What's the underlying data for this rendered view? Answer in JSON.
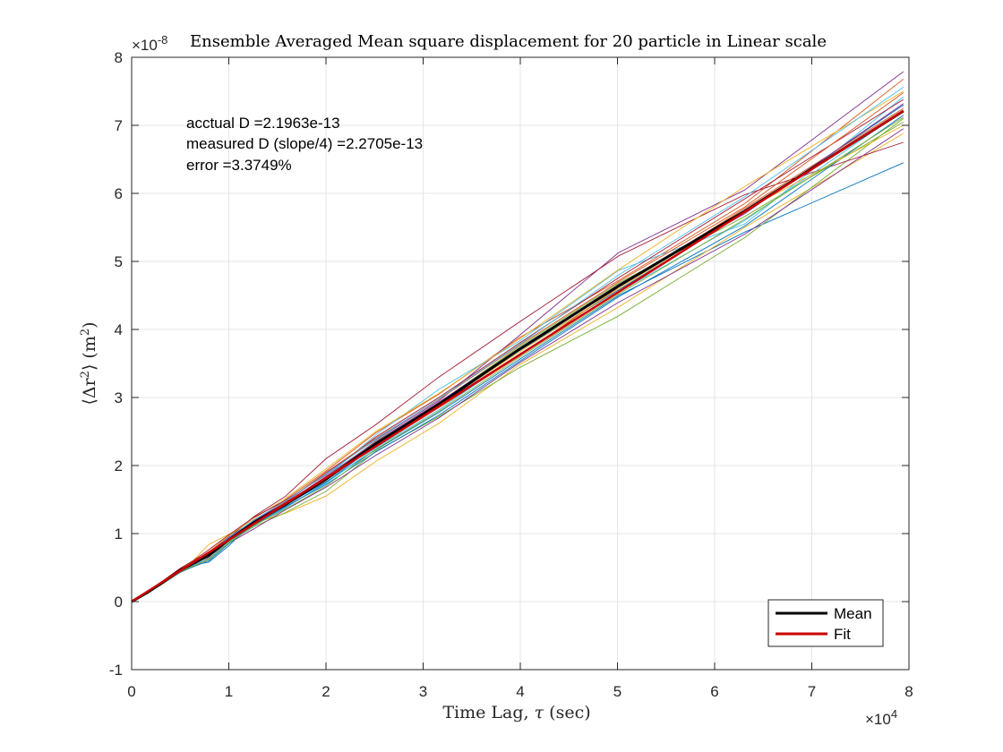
{
  "chart_data": {
    "type": "line",
    "title": "Ensemble Averaged Mean square displacement for 20 particle in Linear scale",
    "xlabel_text": "Time Lag,",
    "xlabel_symbol": "τ",
    "xlabel_unit": "(sec)",
    "ylabel_left": "⟨Δr",
    "ylabel_sup": "2",
    "ylabel_mid": "⟩ (m",
    "ylabel_sup2": "2",
    "ylabel_right": ")",
    "x_exponent_base": "×10",
    "x_exponent_power": "4",
    "y_exponent_base": "×10",
    "y_exponent_power": "-8",
    "xlim": [
      0,
      8
    ],
    "ylim": [
      -1,
      8
    ],
    "x_scale_note": "x in units of 1e4 s, y in units of 1e-8 m^2",
    "x_ticks": [
      0,
      1,
      2,
      3,
      4,
      5,
      6,
      7,
      8
    ],
    "y_ticks": [
      -1,
      0,
      1,
      2,
      3,
      4,
      5,
      6,
      7,
      8
    ],
    "grid": true,
    "legend_position": "bottom-right",
    "annotations": [
      "acctual D =2.1963e-13",
      "measured D (slope/4) =2.2705e-13",
      "error =3.3749%"
    ],
    "x": [
      0,
      0.158,
      0.316,
      0.5,
      0.631,
      0.794,
      1.0,
      1.259,
      1.585,
      2.0,
      2.512,
      3.162,
      3.981,
      5.012,
      6.31,
      7.943
    ],
    "series_colors": [
      "#0072BD",
      "#D95319",
      "#EDB120",
      "#7E2F8E",
      "#77AC30",
      "#4DBEEE",
      "#A2142F"
    ],
    "series": [
      {
        "values": [
          0,
          0.12,
          0.27,
          0.45,
          0.54,
          0.58,
          0.82,
          1.19,
          1.42,
          1.76,
          2.23,
          2.78,
          3.55,
          4.5,
          5.43,
          6.45
        ]
      },
      {
        "values": [
          0,
          0.13,
          0.29,
          0.47,
          0.58,
          0.69,
          0.95,
          1.17,
          1.5,
          1.92,
          2.48,
          3.05,
          3.87,
          4.72,
          5.85,
          7.68
        ]
      },
      {
        "values": [
          0,
          0.14,
          0.28,
          0.46,
          0.6,
          0.84,
          0.99,
          1.15,
          1.3,
          1.55,
          2.06,
          2.62,
          3.47,
          4.33,
          5.5,
          6.88
        ]
      },
      {
        "values": [
          0,
          0.13,
          0.3,
          0.48,
          0.56,
          0.66,
          0.93,
          1.2,
          1.46,
          1.89,
          2.38,
          2.95,
          3.9,
          5.13,
          6.05,
          7.79
        ]
      },
      {
        "values": [
          0,
          0.12,
          0.26,
          0.43,
          0.52,
          0.7,
          0.88,
          1.1,
          1.31,
          1.62,
          2.21,
          2.72,
          3.43,
          4.2,
          5.35,
          7.1
        ]
      },
      {
        "values": [
          0,
          0.13,
          0.28,
          0.45,
          0.55,
          0.66,
          0.91,
          1.16,
          1.43,
          1.83,
          2.45,
          3.12,
          3.82,
          4.87,
          5.55,
          7.42
        ]
      },
      {
        "values": [
          0,
          0.14,
          0.29,
          0.47,
          0.57,
          0.65,
          0.94,
          1.25,
          1.55,
          2.1,
          2.6,
          3.3,
          4.1,
          5.08,
          5.98,
          6.75
        ]
      },
      {
        "values": [
          0,
          0.12,
          0.28,
          0.46,
          0.55,
          0.68,
          0.89,
          1.12,
          1.38,
          1.75,
          2.3,
          2.88,
          3.68,
          4.58,
          5.72,
          7.3
        ]
      },
      {
        "values": [
          0,
          0.13,
          0.27,
          0.44,
          0.53,
          0.63,
          0.9,
          1.18,
          1.44,
          1.8,
          2.28,
          2.85,
          3.6,
          4.62,
          5.78,
          7.25
        ]
      },
      {
        "values": [
          0,
          0.14,
          0.3,
          0.48,
          0.59,
          0.73,
          0.97,
          1.22,
          1.52,
          1.95,
          2.5,
          3.06,
          3.85,
          4.88,
          6.1,
          7.5
        ]
      },
      {
        "values": [
          0,
          0.12,
          0.27,
          0.45,
          0.54,
          0.67,
          0.86,
          1.07,
          1.35,
          1.68,
          2.15,
          2.7,
          3.5,
          4.4,
          5.4,
          6.95
        ]
      },
      {
        "values": [
          0,
          0.13,
          0.29,
          0.46,
          0.57,
          0.71,
          0.92,
          1.14,
          1.41,
          1.82,
          2.36,
          2.92,
          3.74,
          4.68,
          5.66,
          7.05
        ]
      },
      {
        "values": [
          0,
          0.13,
          0.28,
          0.44,
          0.53,
          0.64,
          0.87,
          1.11,
          1.39,
          1.74,
          2.26,
          2.82,
          3.63,
          4.55,
          5.6,
          7.22
        ]
      },
      {
        "values": [
          0,
          0.14,
          0.3,
          0.49,
          0.6,
          0.76,
          0.98,
          1.24,
          1.49,
          1.86,
          2.42,
          3.0,
          3.79,
          4.76,
          5.92,
          7.38
        ]
      },
      {
        "values": [
          0,
          0.12,
          0.26,
          0.43,
          0.51,
          0.6,
          0.85,
          1.13,
          1.4,
          1.72,
          2.2,
          2.74,
          3.52,
          4.48,
          5.52,
          7.15
        ]
      },
      {
        "values": [
          0,
          0.13,
          0.28,
          0.46,
          0.56,
          0.69,
          0.93,
          1.17,
          1.47,
          1.9,
          2.4,
          2.97,
          3.76,
          4.7,
          5.8,
          7.48
        ]
      },
      {
        "values": [
          0,
          0.12,
          0.27,
          0.45,
          0.55,
          0.66,
          0.89,
          1.15,
          1.42,
          1.78,
          2.3,
          2.9,
          3.66,
          4.6,
          5.75,
          7.0
        ]
      },
      {
        "values": [
          0,
          0.13,
          0.29,
          0.47,
          0.58,
          0.72,
          0.95,
          1.19,
          1.45,
          1.84,
          2.35,
          2.93,
          3.71,
          4.66,
          5.7,
          7.32
        ]
      },
      {
        "values": [
          0,
          0.12,
          0.26,
          0.44,
          0.52,
          0.62,
          0.86,
          1.12,
          1.36,
          1.7,
          2.24,
          2.8,
          3.58,
          4.52,
          5.62,
          7.12
        ]
      },
      {
        "values": [
          0,
          0.14,
          0.29,
          0.47,
          0.57,
          0.7,
          0.94,
          1.2,
          1.48,
          1.87,
          2.39,
          2.98,
          3.77,
          4.8,
          5.95,
          7.56
        ]
      }
    ],
    "mean": {
      "name": "Mean",
      "color": "#000000",
      "values": [
        0,
        0.13,
        0.28,
        0.46,
        0.56,
        0.68,
        0.91,
        1.16,
        1.43,
        1.8,
        2.32,
        2.9,
        3.7,
        4.64,
        5.74,
        7.21
      ]
    },
    "fit": {
      "name": "Fit",
      "color": "#CC0000",
      "slope": 0.9082,
      "intercept": 0.0
    }
  }
}
